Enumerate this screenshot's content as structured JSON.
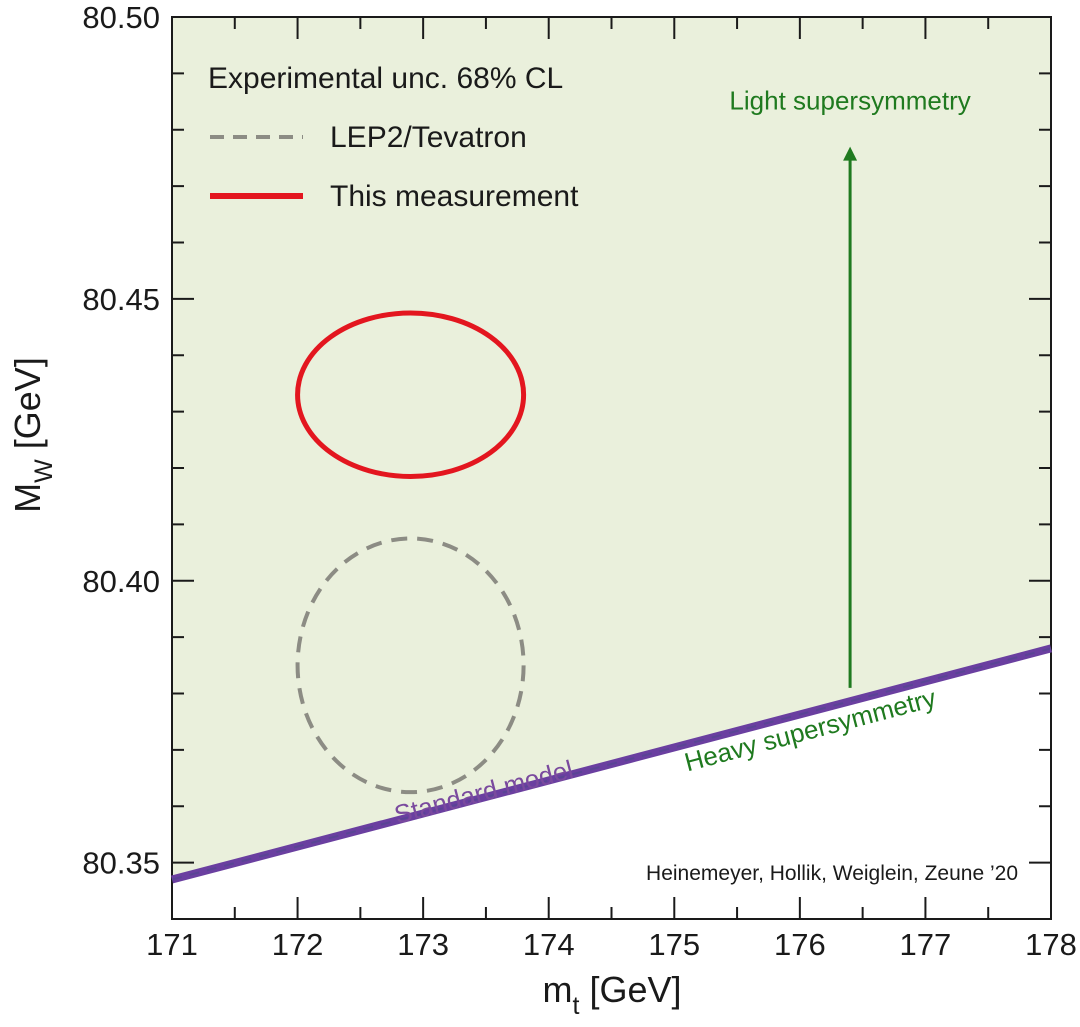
{
  "chart_data": {
    "type": "scatter",
    "title": "",
    "xlabel_main": "m",
    "xlabel_sub": "t",
    "xlabel_unit": "[GeV]",
    "ylabel_main": "M",
    "ylabel_sub": "W",
    "ylabel_unit": "[GeV]",
    "xlim": [
      171,
      178
    ],
    "ylim": [
      80.34,
      80.5
    ],
    "x_ticks": [
      171,
      172,
      173,
      174,
      175,
      176,
      177,
      178
    ],
    "x_tick_labels": [
      "171",
      "172",
      "173",
      "174",
      "175",
      "176",
      "177",
      "178"
    ],
    "y_ticks": [
      80.35,
      80.4,
      80.45,
      80.5
    ],
    "y_tick_labels": [
      "80.35",
      "80.40",
      "80.45",
      "80.50"
    ],
    "grid": false,
    "legend": {
      "placement": "top-left",
      "title": "Experimental unc. 68% CL",
      "entries": [
        {
          "label": "LEP2/Tevatron",
          "style": "dashed",
          "color": "#8c8c84"
        },
        {
          "label": "This measurement",
          "style": "solid",
          "color": "#e3161f"
        }
      ]
    },
    "ellipses": [
      {
        "name": "LEP2/Tevatron",
        "center_x": 172.9,
        "center_y": 80.385,
        "half_width_x": 0.9,
        "half_height_y": 0.0225,
        "style": "dashed",
        "color": "#8c8c84"
      },
      {
        "name": "This measurement",
        "center_x": 172.9,
        "center_y": 80.433,
        "half_width_x": 0.9,
        "half_height_y": 0.0145,
        "style": "solid",
        "color": "#e3161f"
      }
    ],
    "series": [
      {
        "name": "Standard model",
        "x": [
          171,
          178
        ],
        "y": [
          80.347,
          80.388
        ],
        "color": "#6a3fa0"
      }
    ],
    "allowed_region": {
      "name": "Supersymmetry",
      "fill": "#eaf0dc"
    },
    "annotations": [
      {
        "text": "Light supersymmetry",
        "x": 176.4,
        "y": 80.485,
        "color": "#1f7a1f"
      },
      {
        "text": "Heavy supersymmetry",
        "x": 176.1,
        "y": 80.372,
        "color": "#1f7a1f"
      },
      {
        "text": "Standard model",
        "x": 173.5,
        "y": 80.361,
        "color": "#7a4a9e"
      }
    ],
    "arrow": {
      "x": 176.4,
      "y_from": 80.381,
      "y_to": 80.477,
      "color": "#1f7a1f"
    },
    "credit": "Heinemeyer, Hollik, Weiglein, Zeune ’20"
  }
}
